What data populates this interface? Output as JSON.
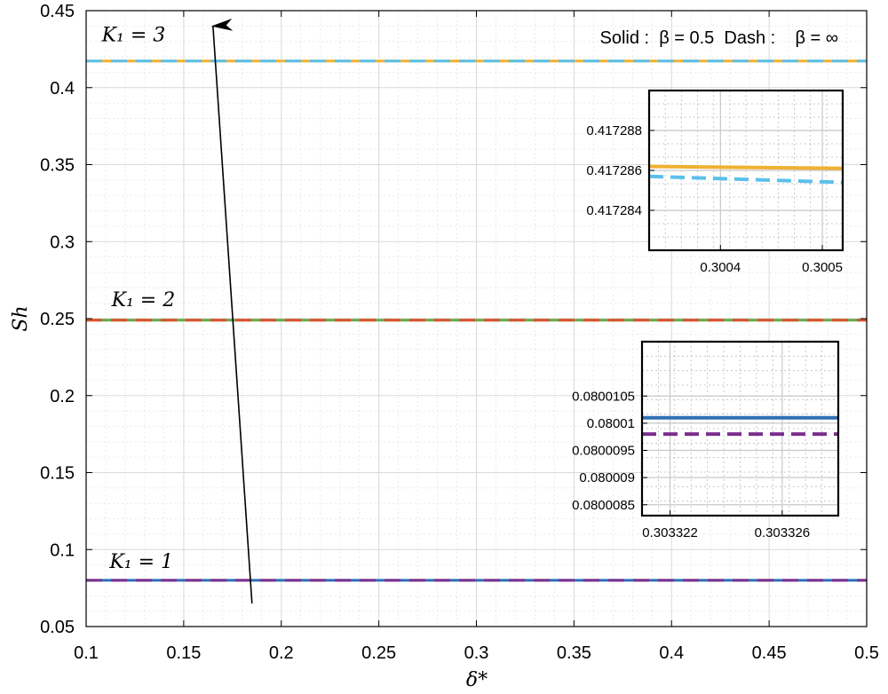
{
  "chart_data": {
    "type": "line",
    "xlabel": "δ*",
    "ylabel": "Sh",
    "xlim": [
      0.1,
      0.5
    ],
    "ylim": [
      0.05,
      0.45
    ],
    "x_ticks": [
      "0.1",
      "0.15",
      "0.2",
      "0.25",
      "0.3",
      "0.35",
      "0.4",
      "0.45",
      "0.5"
    ],
    "y_ticks": [
      "0.05",
      "0.1",
      "0.15",
      "0.2",
      "0.25",
      "0.3",
      "0.35",
      "0.4",
      "0.45"
    ],
    "grid": true,
    "legend_text": "Solid :  β = 0.5  Dash :    β = ∞",
    "series": [
      {
        "name": "K1=1, β=0.5",
        "style": "solid",
        "color": "#2f6fb5",
        "x": [
          0.1,
          0.5
        ],
        "values": [
          0.08001,
          0.08001
        ]
      },
      {
        "name": "K1=1, β=∞",
        "style": "dash",
        "color": "#7b2f8e",
        "x": [
          0.1,
          0.5
        ],
        "values": [
          0.08001,
          0.08001
        ]
      },
      {
        "name": "K1=2, β=0.5",
        "style": "solid",
        "color": "#6aa84f",
        "x": [
          0.1,
          0.5
        ],
        "values": [
          0.249,
          0.249
        ]
      },
      {
        "name": "K1=2, β=∞",
        "style": "dash",
        "color": "#d9532b",
        "x": [
          0.1,
          0.5
        ],
        "values": [
          0.249,
          0.249
        ]
      },
      {
        "name": "K1=3, β=0.5",
        "style": "solid",
        "color": "#f0b030",
        "x": [
          0.1,
          0.5
        ],
        "values": [
          0.417286,
          0.417286
        ]
      },
      {
        "name": "K1=3, β=∞",
        "style": "dash",
        "color": "#5bc0eb",
        "x": [
          0.1,
          0.5
        ],
        "values": [
          0.417286,
          0.417286
        ]
      }
    ],
    "annotations": [
      {
        "text": "K₁ = 1",
        "x": 0.112,
        "y": 0.088
      },
      {
        "text": "K₁ = 2",
        "x": 0.113,
        "y": 0.258
      },
      {
        "text": "K₁ = 3",
        "x": 0.108,
        "y": 0.43
      }
    ],
    "arrow": {
      "from": [
        0.185,
        0.065
      ],
      "to": [
        0.165,
        0.44
      ]
    },
    "insets": [
      {
        "name": "inset-top",
        "xlim": [
          0.30033,
          0.30052
        ],
        "ylim": [
          0.417282,
          0.41729
        ],
        "x_ticks": [
          {
            "v": 0.3004,
            "label": "0.3004"
          },
          {
            "v": 0.3005,
            "label": "0.3005"
          }
        ],
        "y_ticks": [
          {
            "v": 0.417288,
            "label": "0.417288"
          },
          {
            "v": 0.417286,
            "label": "0.417286"
          },
          {
            "v": 0.417284,
            "label": "0.417284"
          }
        ],
        "lines": [
          {
            "style": "solid",
            "color": "#f0b030",
            "values": [
              0.4172862,
              0.4172861
            ]
          },
          {
            "style": "dash",
            "color": "#5bc0eb",
            "values": [
              0.4172857,
              0.4172854
            ]
          }
        ]
      },
      {
        "name": "inset-bottom",
        "xlim": [
          0.303321,
          0.303328
        ],
        "ylim": [
          0.0800083,
          0.0800115
        ],
        "x_ticks": [
          {
            "v": 0.303322,
            "label": "0.303322"
          },
          {
            "v": 0.303326,
            "label": "0.303326"
          }
        ],
        "y_ticks": [
          {
            "v": 0.0800105,
            "label": "0.0800105"
          },
          {
            "v": 0.08001,
            "label": "0.08001"
          },
          {
            "v": 0.0800095,
            "label": "0.0800095"
          },
          {
            "v": 0.080009,
            "label": "0.080009"
          },
          {
            "v": 0.0800085,
            "label": "0.0800085"
          }
        ],
        "lines": [
          {
            "style": "solid",
            "color": "#2f6fb5",
            "values": [
              0.0800101,
              0.0800101
            ]
          },
          {
            "style": "dash",
            "color": "#7b2f8e",
            "values": [
              0.0800098,
              0.0800098
            ]
          }
        ]
      }
    ]
  }
}
